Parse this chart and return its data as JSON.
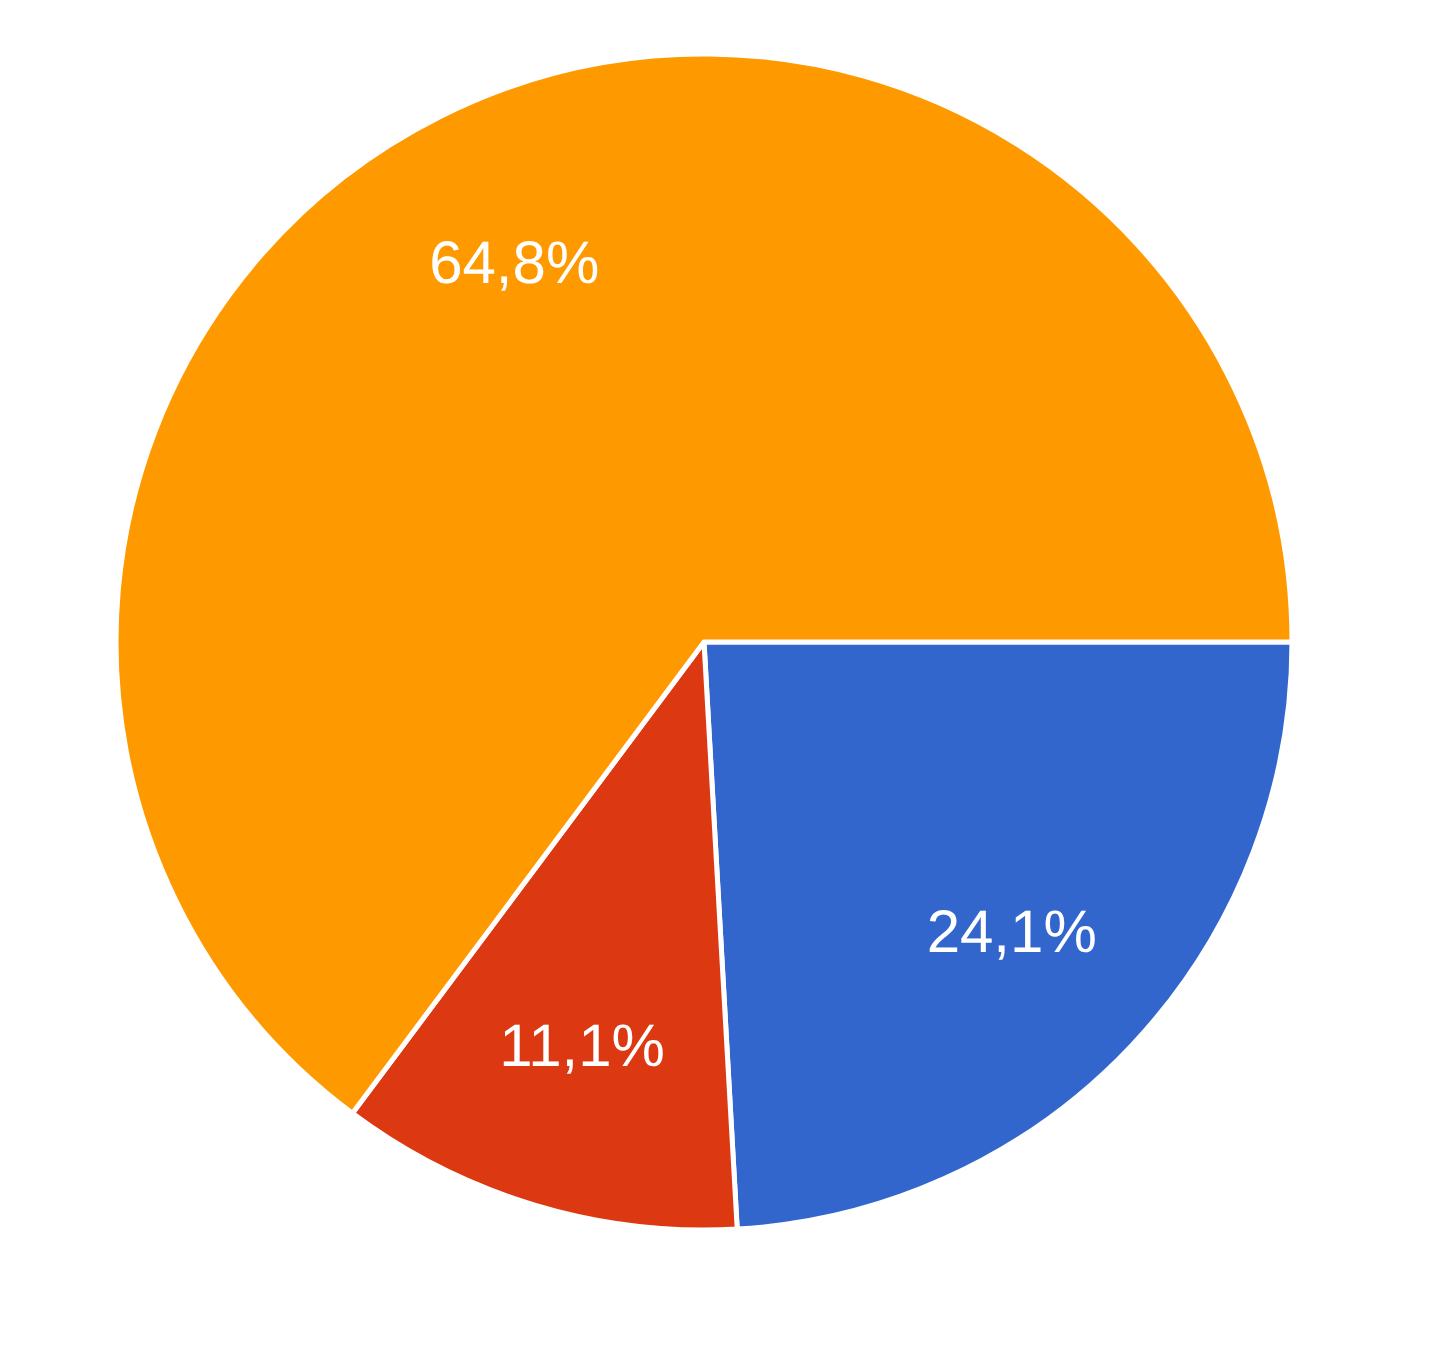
{
  "chart_data": {
    "type": "pie",
    "categories": [
      null,
      null,
      null
    ],
    "values": [
      24.1,
      11.1,
      64.8
    ],
    "colors": [
      "#3366cc",
      "#dc3912",
      "#ff9900"
    ],
    "value_labels": [
      "24,1%",
      "11,1%",
      "64,8%"
    ]
  }
}
